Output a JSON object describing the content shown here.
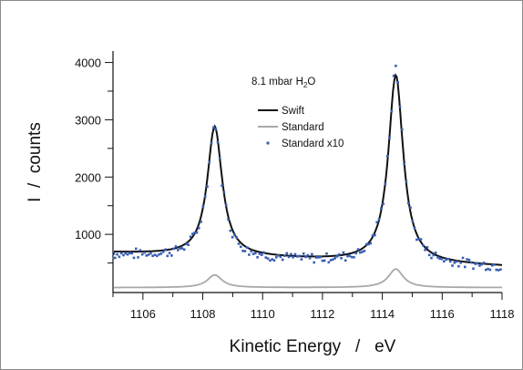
{
  "chart_data": {
    "type": "line",
    "annotation": {
      "main": "8.1 mbar H",
      "sub": "2",
      "tail": "O"
    },
    "xlabel": "Kinetic Energy   /   eV",
    "ylabel": "I  /  counts",
    "xlim": [
      1105,
      1118
    ],
    "ylim": [
      0,
      4200
    ],
    "xticks": [
      1106,
      1108,
      1110,
      1112,
      1114,
      1116,
      1118
    ],
    "yticks": [
      1000,
      2000,
      3000,
      4000
    ],
    "xtick_labels": [
      "1106",
      "1108",
      "1110",
      "1112",
      "1114",
      "1116",
      "1118"
    ],
    "ytick_labels": [
      "1000",
      "2000",
      "3000",
      "4000"
    ],
    "legend_position": "upper-center",
    "grid": false,
    "series": [
      {
        "name": "Swift",
        "style": "solid-line",
        "color": "#111111",
        "baseline": 680,
        "baseline_end": 440,
        "peaks": [
          {
            "center": 1108.4,
            "height": 2940,
            "hwhm": 0.3
          },
          {
            "center": 1114.45,
            "height": 3950,
            "hwhm": 0.3
          }
        ]
      },
      {
        "name": "Standard",
        "style": "solid-line",
        "color": "#a8a8a8",
        "baseline": 70,
        "baseline_end": 70,
        "peaks": [
          {
            "center": 1108.4,
            "height": 290,
            "hwhm": 0.3
          },
          {
            "center": 1114.45,
            "height": 395,
            "hwhm": 0.3
          }
        ]
      },
      {
        "name": "Standard x10",
        "style": "points",
        "color": "#3a5fb5",
        "baseline": 640,
        "baseline_end": 420,
        "peaks": [
          {
            "center": 1108.4,
            "height": 2900,
            "hwhm": 0.3
          },
          {
            "center": 1114.45,
            "height": 4000,
            "hwhm": 0.3
          }
        ]
      }
    ]
  }
}
